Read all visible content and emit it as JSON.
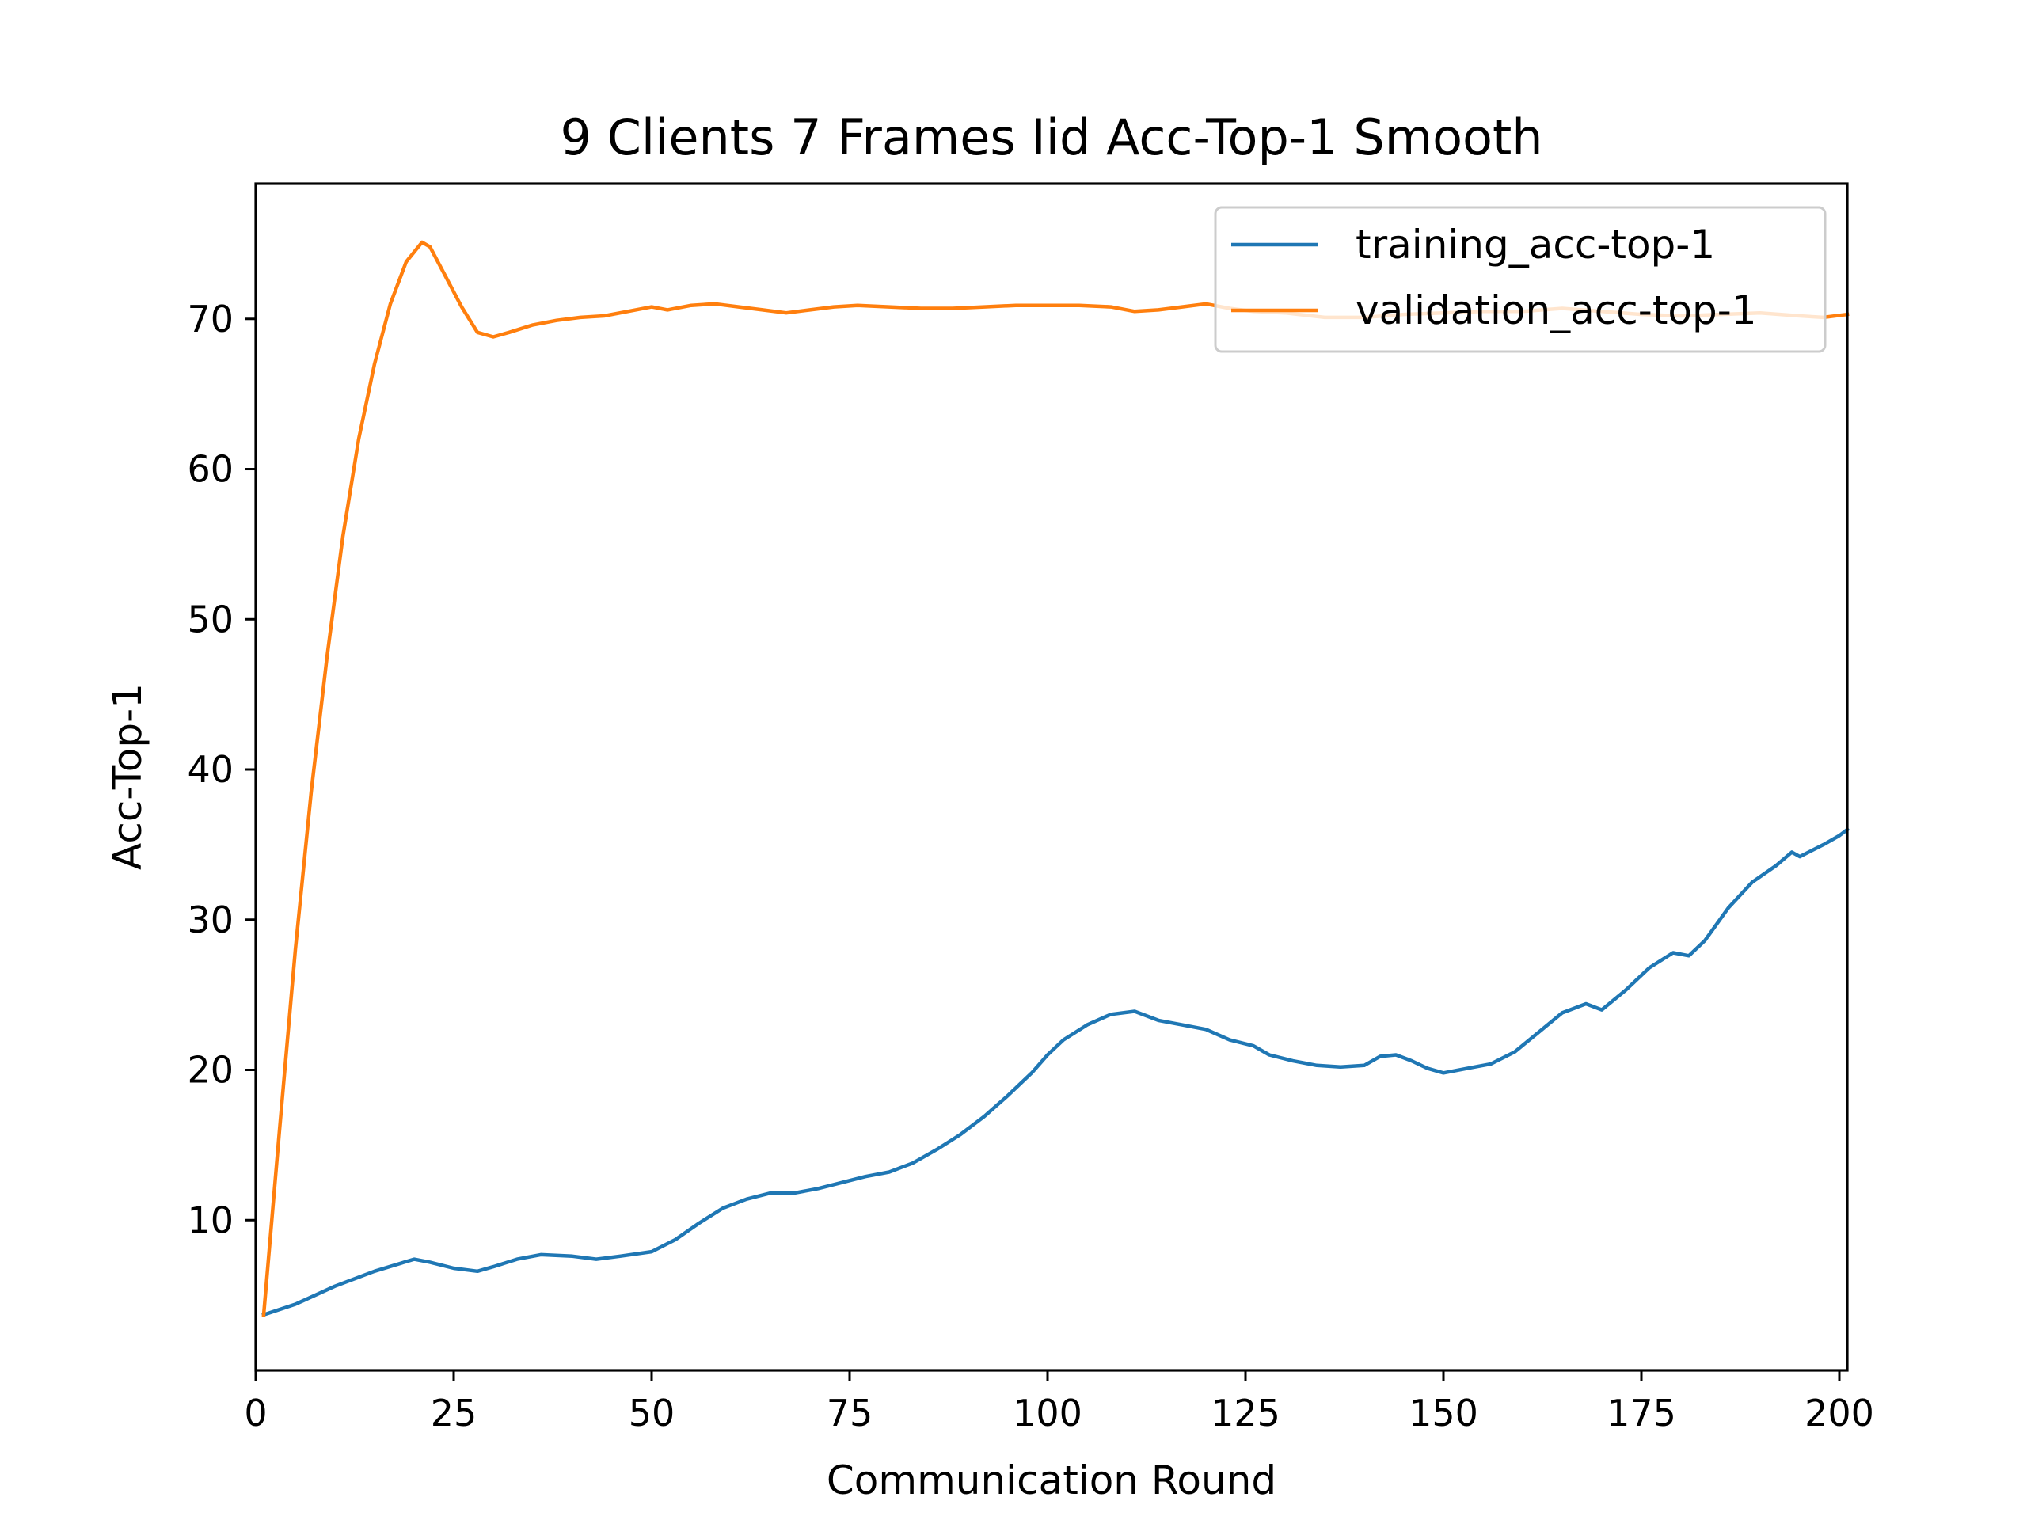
{
  "chart_data": {
    "type": "line",
    "title": "9 Clients 7 Frames Iid Acc-Top-1 Smooth",
    "xlabel": "Communication Round",
    "ylabel": "Acc-Top-1",
    "xlim": [
      0,
      201
    ],
    "ylim": [
      0,
      79
    ],
    "xticks": [
      0,
      25,
      50,
      75,
      100,
      125,
      150,
      175,
      200
    ],
    "yticks": [
      10,
      20,
      30,
      40,
      50,
      60,
      70
    ],
    "grid": false,
    "legend_position": "top-right",
    "series": [
      {
        "name": "training_acc-top-1",
        "color": "#1f77b4",
        "points": [
          [
            1,
            3.7
          ],
          [
            5,
            4.4
          ],
          [
            10,
            5.6
          ],
          [
            15,
            6.6
          ],
          [
            20,
            7.4
          ],
          [
            22,
            7.2
          ],
          [
            25,
            6.8
          ],
          [
            28,
            6.6
          ],
          [
            30,
            6.9
          ],
          [
            33,
            7.4
          ],
          [
            36,
            7.7
          ],
          [
            40,
            7.6
          ],
          [
            43,
            7.4
          ],
          [
            46,
            7.6
          ],
          [
            50,
            7.9
          ],
          [
            53,
            8.7
          ],
          [
            56,
            9.8
          ],
          [
            59,
            10.8
          ],
          [
            62,
            11.4
          ],
          [
            65,
            11.8
          ],
          [
            68,
            11.8
          ],
          [
            71,
            12.1
          ],
          [
            74,
            12.5
          ],
          [
            77,
            12.9
          ],
          [
            80,
            13.2
          ],
          [
            83,
            13.8
          ],
          [
            86,
            14.7
          ],
          [
            89,
            15.7
          ],
          [
            92,
            16.9
          ],
          [
            95,
            18.3
          ],
          [
            98,
            19.8
          ],
          [
            100,
            21.0
          ],
          [
            102,
            22.0
          ],
          [
            105,
            23.0
          ],
          [
            108,
            23.7
          ],
          [
            111,
            23.9
          ],
          [
            114,
            23.3
          ],
          [
            117,
            23.0
          ],
          [
            120,
            22.7
          ],
          [
            123,
            22.0
          ],
          [
            126,
            21.6
          ],
          [
            128,
            21.0
          ],
          [
            131,
            20.6
          ],
          [
            134,
            20.3
          ],
          [
            137,
            20.2
          ],
          [
            140,
            20.3
          ],
          [
            142,
            20.9
          ],
          [
            144,
            21.0
          ],
          [
            146,
            20.6
          ],
          [
            148,
            20.1
          ],
          [
            150,
            19.8
          ],
          [
            153,
            20.1
          ],
          [
            156,
            20.4
          ],
          [
            159,
            21.2
          ],
          [
            162,
            22.5
          ],
          [
            165,
            23.8
          ],
          [
            168,
            24.4
          ],
          [
            170,
            24.0
          ],
          [
            173,
            25.3
          ],
          [
            176,
            26.8
          ],
          [
            179,
            27.8
          ],
          [
            181,
            27.6
          ],
          [
            183,
            28.6
          ],
          [
            186,
            30.8
          ],
          [
            189,
            32.5
          ],
          [
            192,
            33.6
          ],
          [
            194,
            34.5
          ],
          [
            195,
            34.2
          ],
          [
            198,
            35.0
          ],
          [
            200,
            35.6
          ],
          [
            201,
            36.0
          ]
        ]
      },
      {
        "name": "validation_acc-top-1",
        "color": "#ff7f0e",
        "points": [
          [
            1,
            3.7
          ],
          [
            3,
            16.0
          ],
          [
            5,
            28.0
          ],
          [
            7,
            38.5
          ],
          [
            9,
            47.5
          ],
          [
            11,
            55.5
          ],
          [
            13,
            62.0
          ],
          [
            15,
            67.0
          ],
          [
            17,
            71.0
          ],
          [
            19,
            73.8
          ],
          [
            21,
            75.1
          ],
          [
            22,
            74.8
          ],
          [
            24,
            72.8
          ],
          [
            26,
            70.8
          ],
          [
            28,
            69.1
          ],
          [
            30,
            68.8
          ],
          [
            32,
            69.1
          ],
          [
            35,
            69.6
          ],
          [
            38,
            69.9
          ],
          [
            41,
            70.1
          ],
          [
            44,
            70.2
          ],
          [
            47,
            70.5
          ],
          [
            50,
            70.8
          ],
          [
            52,
            70.6
          ],
          [
            55,
            70.9
          ],
          [
            58,
            71.0
          ],
          [
            61,
            70.8
          ],
          [
            64,
            70.6
          ],
          [
            67,
            70.4
          ],
          [
            70,
            70.6
          ],
          [
            73,
            70.8
          ],
          [
            76,
            70.9
          ],
          [
            80,
            70.8
          ],
          [
            84,
            70.7
          ],
          [
            88,
            70.7
          ],
          [
            92,
            70.8
          ],
          [
            96,
            70.9
          ],
          [
            100,
            70.9
          ],
          [
            104,
            70.9
          ],
          [
            108,
            70.8
          ],
          [
            111,
            70.5
          ],
          [
            114,
            70.6
          ],
          [
            117,
            70.8
          ],
          [
            120,
            71.0
          ],
          [
            123,
            70.7
          ],
          [
            126,
            70.5
          ],
          [
            130,
            70.4
          ],
          [
            135,
            70.1
          ],
          [
            140,
            70.1
          ],
          [
            145,
            70.3
          ],
          [
            150,
            70.4
          ],
          [
            155,
            70.5
          ],
          [
            160,
            70.5
          ],
          [
            165,
            70.7
          ],
          [
            170,
            70.5
          ],
          [
            175,
            70.3
          ],
          [
            180,
            70.2
          ],
          [
            185,
            70.3
          ],
          [
            190,
            70.4
          ],
          [
            195,
            70.2
          ],
          [
            198,
            70.1
          ],
          [
            201,
            70.3
          ]
        ]
      }
    ]
  }
}
